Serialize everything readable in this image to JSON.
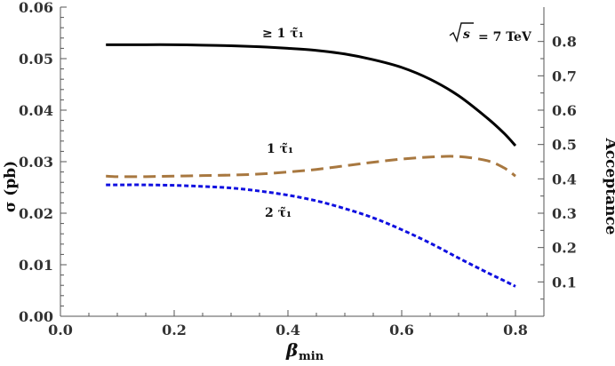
{
  "chart_data": {
    "type": "line",
    "x_axis": {
      "label": "β",
      "label_sub": "min",
      "lim": [
        0.0,
        0.85
      ],
      "ticks": [
        0.0,
        0.2,
        0.4,
        0.6,
        0.8
      ],
      "tick_labels": [
        "0.0",
        "0.2",
        "0.4",
        "0.6",
        "0.8"
      ]
    },
    "y_axis_left": {
      "label": "σ (pb)",
      "lim": [
        0.0,
        0.06
      ],
      "ticks": [
        0.0,
        0.01,
        0.02,
        0.03,
        0.04,
        0.05,
        0.06
      ],
      "tick_labels": [
        "0.00",
        "0.01",
        "0.02",
        "0.03",
        "0.04",
        "0.05",
        "0.06"
      ]
    },
    "y_axis_right": {
      "label": "Acceptance",
      "lim": [
        0.0,
        0.9
      ],
      "ticks": [
        0.1,
        0.2,
        0.3,
        0.4,
        0.5,
        0.6,
        0.7,
        0.8
      ],
      "tick_labels": [
        "0.1",
        "0.2",
        "0.3",
        "0.4",
        "0.5",
        "0.6",
        "0.7",
        "0.8"
      ]
    },
    "grid": false,
    "annotations": {
      "energy": "√s = 7 TeV",
      "energy_radicand": "s",
      "energy_value": "= 7 TeV",
      "series_labels": [
        "≥ 1 τ̃₁",
        "1 τ̃₁",
        "2 τ̃₁"
      ]
    },
    "series": [
      {
        "name": "≥ 1 τ̃₁",
        "axis": "left",
        "style": "solid",
        "color": "#000000",
        "x": [
          0.08,
          0.1,
          0.15,
          0.2,
          0.25,
          0.3,
          0.35,
          0.4,
          0.45,
          0.5,
          0.55,
          0.6,
          0.65,
          0.7,
          0.75,
          0.78,
          0.8
        ],
        "y": [
          0.0527,
          0.0527,
          0.0527,
          0.0527,
          0.0526,
          0.0525,
          0.0523,
          0.052,
          0.0516,
          0.0509,
          0.0498,
          0.0483,
          0.046,
          0.0428,
          0.0385,
          0.0355,
          0.0331
        ]
      },
      {
        "name": "1 τ̃₁",
        "axis": "left",
        "style": "long-dash",
        "color": "#a87840",
        "x": [
          0.08,
          0.1,
          0.15,
          0.2,
          0.25,
          0.3,
          0.35,
          0.4,
          0.45,
          0.5,
          0.55,
          0.6,
          0.65,
          0.7,
          0.75,
          0.78,
          0.8
        ],
        "y": [
          0.0272,
          0.0271,
          0.0271,
          0.0272,
          0.0273,
          0.0274,
          0.0276,
          0.028,
          0.0285,
          0.0292,
          0.0299,
          0.0305,
          0.0309,
          0.031,
          0.0302,
          0.0288,
          0.0272
        ]
      },
      {
        "name": "2 τ̃₁",
        "axis": "left",
        "style": "dotted",
        "color": "#1010e0",
        "x": [
          0.08,
          0.1,
          0.15,
          0.2,
          0.25,
          0.3,
          0.35,
          0.4,
          0.45,
          0.5,
          0.55,
          0.6,
          0.65,
          0.7,
          0.75,
          0.78,
          0.8
        ],
        "y": [
          0.0255,
          0.0255,
          0.0255,
          0.0254,
          0.0252,
          0.0249,
          0.0243,
          0.0235,
          0.0224,
          0.0209,
          0.0191,
          0.0168,
          0.0142,
          0.0113,
          0.0085,
          0.0069,
          0.0058
        ]
      }
    ]
  }
}
